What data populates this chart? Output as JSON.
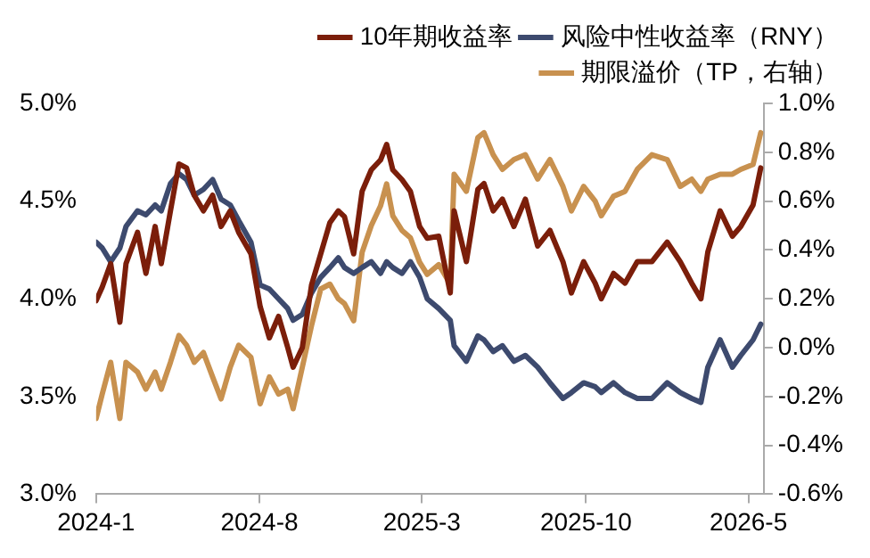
{
  "chart_data": {
    "type": "line",
    "x": [
      "2024-01-01",
      "2024-01-09",
      "2024-01-20",
      "2024-02-01",
      "2024-02-09",
      "2024-02-24",
      "2024-03-06",
      "2024-03-18",
      "2024-03-26",
      "2024-04-07",
      "2024-04-18",
      "2024-04-28",
      "2024-05-08",
      "2024-05-20",
      "2024-06-01",
      "2024-06-12",
      "2024-06-24",
      "2024-07-05",
      "2024-07-21",
      "2024-08-02",
      "2024-08-14",
      "2024-08-26",
      "2024-09-07",
      "2024-09-14",
      "2024-09-26",
      "2024-10-08",
      "2024-10-20",
      "2024-11-01",
      "2024-11-12",
      "2024-11-20",
      "2024-12-02",
      "2024-12-13",
      "2024-12-25",
      "2025-01-06",
      "2025-01-14",
      "2025-01-22",
      "2025-02-03",
      "2025-02-14",
      "2025-02-26",
      "2025-03-08",
      "2025-03-23",
      "2025-04-07",
      "2025-04-12",
      "2025-04-28",
      "2025-05-13",
      "2025-05-21",
      "2025-06-02",
      "2025-06-14",
      "2025-06-29",
      "2025-07-14",
      "2025-07-30",
      "2025-08-15",
      "2025-09-01",
      "2025-09-12",
      "2025-09-28",
      "2025-10-13",
      "2025-10-21",
      "2025-11-06",
      "2025-11-21",
      "2025-12-07",
      "2025-12-26",
      "2026-01-15",
      "2026-02-01",
      "2026-02-16",
      "2026-02-28",
      "2026-03-09",
      "2026-03-25",
      "2026-04-10",
      "2026-04-21",
      "2026-05-07",
      "2026-05-17"
    ],
    "series": [
      {
        "name": "10年期收益率",
        "color": "#7b1e0a",
        "values": [
          3.99,
          4.06,
          4.18,
          3.88,
          4.18,
          4.34,
          4.13,
          4.37,
          4.18,
          4.45,
          4.69,
          4.67,
          4.53,
          4.45,
          4.53,
          4.37,
          4.45,
          4.34,
          4.23,
          3.96,
          3.8,
          3.91,
          3.75,
          3.65,
          3.75,
          4.07,
          4.23,
          4.39,
          4.45,
          4.42,
          4.23,
          4.55,
          4.66,
          4.71,
          4.79,
          4.66,
          4.61,
          4.55,
          4.37,
          4.31,
          4.32,
          4.03,
          4.45,
          4.19,
          4.56,
          4.59,
          4.45,
          4.51,
          4.37,
          4.51,
          4.27,
          4.35,
          4.19,
          4.03,
          4.19,
          4.08,
          4.0,
          4.13,
          4.08,
          4.19,
          4.19,
          4.29,
          4.19,
          4.08,
          4.0,
          4.24,
          4.45,
          4.32,
          4.37,
          4.48,
          4.67
        ]
      },
      {
        "name": "风险中性收益率（RNY）",
        "color": "#3d4a6e",
        "values": [
          4.29,
          4.26,
          4.19,
          4.26,
          4.37,
          4.45,
          4.43,
          4.48,
          4.45,
          4.59,
          4.64,
          4.61,
          4.53,
          4.56,
          4.61,
          4.51,
          4.48,
          4.4,
          4.29,
          4.07,
          4.05,
          4.0,
          3.95,
          3.89,
          3.92,
          4.03,
          4.11,
          4.16,
          4.21,
          4.16,
          4.13,
          4.16,
          4.19,
          4.13,
          4.19,
          4.16,
          4.13,
          4.19,
          4.11,
          4.0,
          3.95,
          3.89,
          3.76,
          3.68,
          3.81,
          3.79,
          3.73,
          3.76,
          3.68,
          3.71,
          3.65,
          3.57,
          3.49,
          3.52,
          3.57,
          3.55,
          3.52,
          3.57,
          3.52,
          3.49,
          3.49,
          3.57,
          3.52,
          3.49,
          3.47,
          3.65,
          3.79,
          3.65,
          3.71,
          3.79,
          3.87
        ]
      },
      {
        "name": "期限溢价（TP，右轴）",
        "color": "#c8914f",
        "axis": "y2",
        "values": [
          -0.29,
          -0.19,
          -0.06,
          -0.29,
          -0.06,
          -0.1,
          -0.17,
          -0.1,
          -0.17,
          -0.06,
          0.05,
          0.01,
          -0.06,
          -0.02,
          -0.12,
          -0.21,
          -0.08,
          0.01,
          -0.04,
          -0.23,
          -0.12,
          -0.19,
          -0.17,
          -0.25,
          -0.08,
          0.09,
          0.24,
          0.26,
          0.2,
          0.18,
          0.11,
          0.39,
          0.5,
          0.58,
          0.67,
          0.54,
          0.48,
          0.45,
          0.35,
          0.3,
          0.34,
          0.26,
          0.71,
          0.64,
          0.86,
          0.88,
          0.79,
          0.73,
          0.77,
          0.79,
          0.69,
          0.77,
          0.66,
          0.56,
          0.66,
          0.6,
          0.54,
          0.62,
          0.64,
          0.73,
          0.79,
          0.77,
          0.66,
          0.69,
          0.64,
          0.69,
          0.71,
          0.71,
          0.73,
          0.75,
          0.88
        ]
      }
    ],
    "xlim": [
      "2024-01-01",
      "2026-05-21"
    ],
    "xticks": [
      {
        "value": "2024-01-01",
        "label": "2024-1"
      },
      {
        "value": "2024-08-01",
        "label": "2024-8"
      },
      {
        "value": "2025-03-01",
        "label": "2025-3"
      },
      {
        "value": "2025-10-01",
        "label": "2025-10"
      },
      {
        "value": "2026-05-01",
        "label": "2026-5"
      }
    ],
    "ylim": [
      3.0,
      5.0
    ],
    "yticks": [
      {
        "value": 3.0,
        "label": "3.0%"
      },
      {
        "value": 3.5,
        "label": "3.5%"
      },
      {
        "value": 4.0,
        "label": "4.0%"
      },
      {
        "value": 4.5,
        "label": "4.5%"
      },
      {
        "value": 5.0,
        "label": "5.0%"
      }
    ],
    "y2lim": [
      -0.6,
      1.0
    ],
    "y2ticks": [
      {
        "value": -0.6,
        "label": "-0.6%"
      },
      {
        "value": -0.4,
        "label": "-0.4%"
      },
      {
        "value": -0.2,
        "label": "-0.2%"
      },
      {
        "value": 0.0,
        "label": "0.0%"
      },
      {
        "value": 0.2,
        "label": "0.2%"
      },
      {
        "value": 0.4,
        "label": "0.4%"
      },
      {
        "value": 0.6,
        "label": "0.6%"
      },
      {
        "value": 0.8,
        "label": "0.8%"
      },
      {
        "value": 1.0,
        "label": "1.0%"
      }
    ],
    "grid": false,
    "legend": "top",
    "marker": "none",
    "line_style": "solid"
  }
}
